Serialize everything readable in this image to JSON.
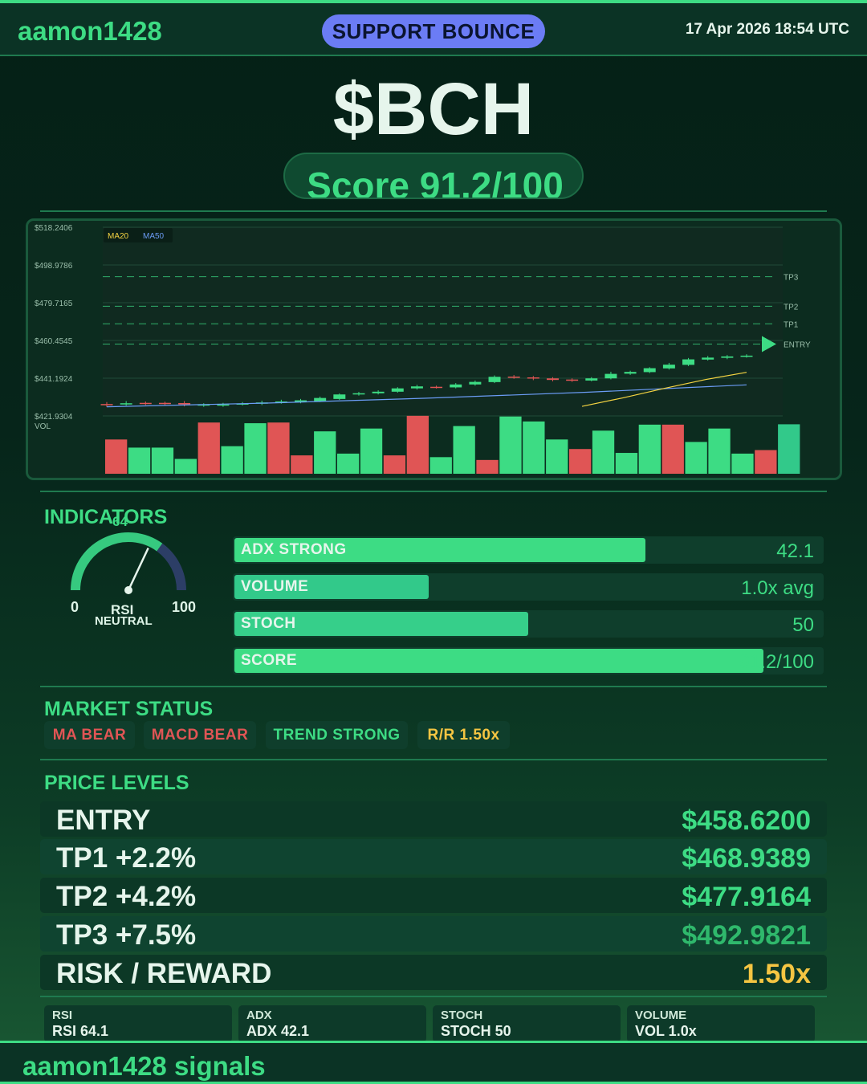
{
  "header": {
    "brand": "aamon1428",
    "signal": "SUPPORT BOUNCE",
    "datetime": "17 Apr 2026  18:54 UTC"
  },
  "ticker": "$BCH",
  "score_text": "Score 91.2/100",
  "chart_data": {
    "type": "candlestick",
    "y_ticks": [
      "$518.2406",
      "$498.9786",
      "$479.7165",
      "$460.4545",
      "$441.1924",
      "$421.9304"
    ],
    "ylim": [
      421.9304,
      518.2406
    ],
    "legend": [
      "MA20",
      "MA50"
    ],
    "vol_label": "VOL",
    "levels": [
      {
        "name": "TP3",
        "value": 492.9821
      },
      {
        "name": "TP2",
        "value": 477.9164
      },
      {
        "name": "TP1",
        "value": 468.9389
      },
      {
        "name": "ENTRY",
        "value": 458.62
      }
    ],
    "candles": [
      {
        "o": 428.0,
        "c": 427.6,
        "h": 429.0,
        "l": 426.5
      },
      {
        "o": 428.0,
        "c": 428.4,
        "h": 429.5,
        "l": 427.2
      },
      {
        "o": 428.6,
        "c": 428.3,
        "h": 429.3,
        "l": 427.5
      },
      {
        "o": 428.6,
        "c": 428.2,
        "h": 429.2,
        "l": 427.4
      },
      {
        "o": 428.5,
        "c": 427.8,
        "h": 429.5,
        "l": 426.8
      },
      {
        "o": 427.3,
        "c": 427.8,
        "h": 428.4,
        "l": 426.6
      },
      {
        "o": 427.2,
        "c": 427.8,
        "h": 428.6,
        "l": 426.6
      },
      {
        "o": 427.9,
        "c": 428.3,
        "h": 429.0,
        "l": 427.3
      },
      {
        "o": 428.2,
        "c": 428.8,
        "h": 429.7,
        "l": 427.5
      },
      {
        "o": 428.7,
        "c": 429.3,
        "h": 430.2,
        "l": 428.2
      },
      {
        "o": 429.0,
        "c": 429.9,
        "h": 430.6,
        "l": 428.4
      },
      {
        "o": 429.5,
        "c": 431.1,
        "h": 431.8,
        "l": 429.0
      },
      {
        "o": 430.6,
        "c": 432.9,
        "h": 433.4,
        "l": 430.1
      },
      {
        "o": 433.0,
        "c": 433.5,
        "h": 434.2,
        "l": 432.3
      },
      {
        "o": 433.5,
        "c": 434.3,
        "h": 435.0,
        "l": 432.9
      },
      {
        "o": 434.3,
        "c": 436.0,
        "h": 436.6,
        "l": 433.8
      },
      {
        "o": 436.0,
        "c": 437.0,
        "h": 437.8,
        "l": 435.4
      },
      {
        "o": 436.8,
        "c": 436.6,
        "h": 437.4,
        "l": 435.9
      },
      {
        "o": 436.5,
        "c": 438.0,
        "h": 438.7,
        "l": 436.0
      },
      {
        "o": 438.0,
        "c": 439.3,
        "h": 440.0,
        "l": 437.4
      },
      {
        "o": 439.2,
        "c": 441.9,
        "h": 442.6,
        "l": 438.7
      },
      {
        "o": 442.0,
        "c": 441.5,
        "h": 442.8,
        "l": 440.9
      },
      {
        "o": 441.6,
        "c": 441.0,
        "h": 442.3,
        "l": 440.2
      },
      {
        "o": 441.1,
        "c": 440.3,
        "h": 441.7,
        "l": 439.6
      },
      {
        "o": 440.5,
        "c": 439.9,
        "h": 441.1,
        "l": 439.3
      },
      {
        "o": 440.0,
        "c": 441.1,
        "h": 441.7,
        "l": 439.6
      },
      {
        "o": 441.1,
        "c": 443.4,
        "h": 444.5,
        "l": 440.6
      },
      {
        "o": 443.5,
        "c": 444.4,
        "h": 445.0,
        "l": 442.9
      },
      {
        "o": 444.3,
        "c": 446.3,
        "h": 446.8,
        "l": 443.8
      },
      {
        "o": 446.2,
        "c": 448.1,
        "h": 449.0,
        "l": 445.6
      },
      {
        "o": 448.0,
        "c": 450.8,
        "h": 451.5,
        "l": 447.4
      },
      {
        "o": 450.7,
        "c": 451.7,
        "h": 452.5,
        "l": 450.2
      },
      {
        "o": 451.6,
        "c": 452.3,
        "h": 453.0,
        "l": 450.9
      },
      {
        "o": 452.2,
        "c": 452.7,
        "h": 453.4,
        "l": 451.7
      }
    ],
    "ma20": [
      426.8,
      431.2,
      436.0,
      440.5,
      444.2
    ],
    "ma50": [
      426.6,
      428.5,
      431.0,
      434.0,
      437.8
    ],
    "volume": [
      0.97,
      0.74,
      0.74,
      0.42,
      1.45,
      0.78,
      1.43,
      1.45,
      0.52,
      1.2,
      0.57,
      1.28,
      0.52,
      1.64,
      0.47,
      1.35,
      0.39,
      1.62,
      1.48,
      0.97,
      0.7,
      1.22,
      0.59,
      1.39,
      1.39,
      0.9,
      1.28,
      0.57,
      0.67,
      1.4
    ]
  },
  "indicators": {
    "title": "INDICATORS",
    "rsi": {
      "value": 64,
      "min_label": "0",
      "max_label": "100",
      "name": "RSI",
      "state": "NEUTRAL"
    },
    "bars": [
      {
        "label": "ADX  STRONG",
        "value_text": "42.1",
        "fill": 0.7,
        "color": "#3ddc84"
      },
      {
        "label": "VOLUME",
        "value_text": "1.0x avg",
        "fill": 0.33,
        "color": "#32c98a"
      },
      {
        "label": "STOCH",
        "value_text": "50",
        "fill": 0.5,
        "color": "#36cf8a"
      },
      {
        "label": "SCORE",
        "value_text": "91.2/100",
        "fill": 0.9,
        "color": "#3ddc84"
      }
    ]
  },
  "market_status": {
    "title": "MARKET STATUS",
    "tags": [
      {
        "label": "MA BEAR",
        "color": "#e05555"
      },
      {
        "label": "MACD BEAR",
        "color": "#e05555"
      },
      {
        "label": "TREND STRONG",
        "color": "#3ddc84"
      },
      {
        "label": "R/R  1.50x",
        "color": "#f5c542"
      }
    ]
  },
  "price_levels": {
    "title": "PRICE LEVELS",
    "rows": [
      {
        "name": "ENTRY",
        "price": "$458.6200",
        "color": "#3ddc84"
      },
      {
        "name": "TP1  +2.2%",
        "price": "$468.9389",
        "color": "#3ddc84"
      },
      {
        "name": "TP2  +4.2%",
        "price": "$477.9164",
        "color": "#3ddc84"
      },
      {
        "name": "TP3  +7.5%",
        "price": "$492.9821",
        "color": "#2fb86c"
      },
      {
        "name": "RISK / REWARD",
        "price": "1.50x",
        "color": "#f5c542"
      }
    ]
  },
  "stats": [
    {
      "head": "RSI",
      "value": "RSI 64.1"
    },
    {
      "head": "ADX",
      "value": "ADX 42.1"
    },
    {
      "head": "STOCH",
      "value": "STOCH 50"
    },
    {
      "head": "VOLUME",
      "value": "VOL 1.0x"
    }
  ],
  "footer": "aamon1428 signals"
}
